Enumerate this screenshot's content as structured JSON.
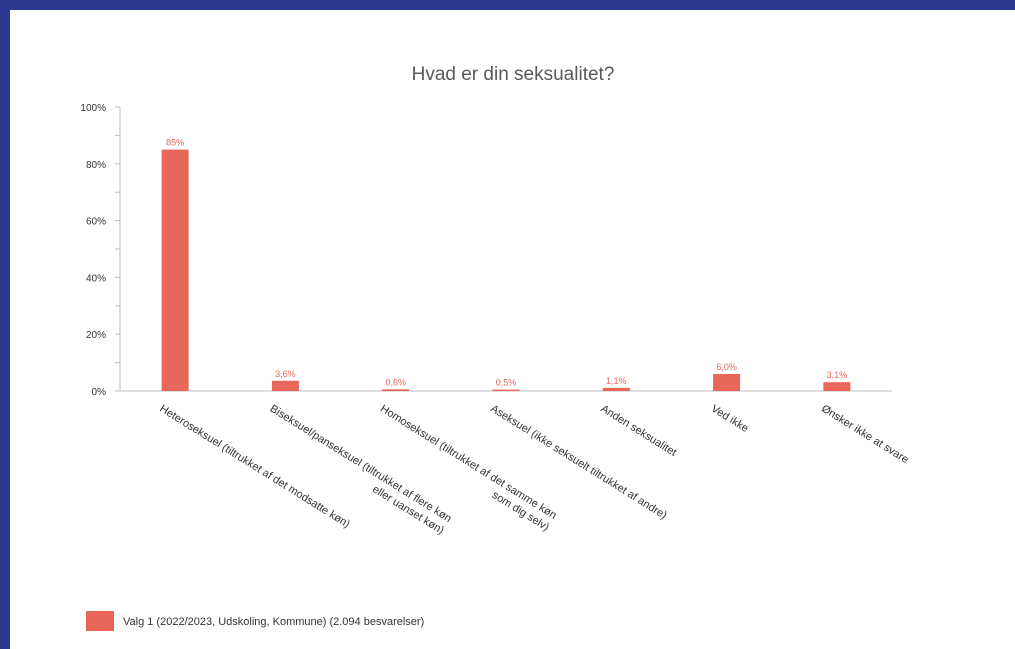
{
  "chart_data": {
    "type": "bar",
    "title": "Hvad er din seksualitet?",
    "categories": [
      [
        "Heteroseksuel (tiltrukket af det modsatte køn)"
      ],
      [
        "Biseksuel/panseksuel (tiltrukket af flere køn",
        "eller uanset køn)"
      ],
      [
        "Homoseksuel (tiltrukket af det samme køn",
        "som dig selv)"
      ],
      [
        "Aseksuel (ikke seksuelt tiltrukket af andre)"
      ],
      [
        "Anden seksualitet"
      ],
      [
        "Ved ikke"
      ],
      [
        "Ønsker ikke at svare"
      ]
    ],
    "series": [
      {
        "name": "Valg 1 (2022/2023, Udskoling, Kommune) (2.094 besvarelser)",
        "values": [
          85,
          3.6,
          0.6,
          0.5,
          1.1,
          6.0,
          3.1
        ],
        "labels": [
          "85%",
          "3,6%",
          "0,6%",
          "0,5%",
          "1,1%",
          "6,0%",
          "3,1%"
        ],
        "color": "#e8675a"
      }
    ],
    "yticks": [
      0,
      20,
      40,
      60,
      80,
      100
    ],
    "ytick_labels": [
      "0%",
      "20%",
      "40%",
      "60%",
      "80%",
      "100%"
    ],
    "ylim": [
      0,
      100
    ],
    "xlabel": "",
    "ylabel": "",
    "grid": false,
    "legend_position": "bottom-left",
    "axis_color": "#bfbfbf",
    "background": "#ffffff",
    "frame_color": "#2b3990"
  }
}
